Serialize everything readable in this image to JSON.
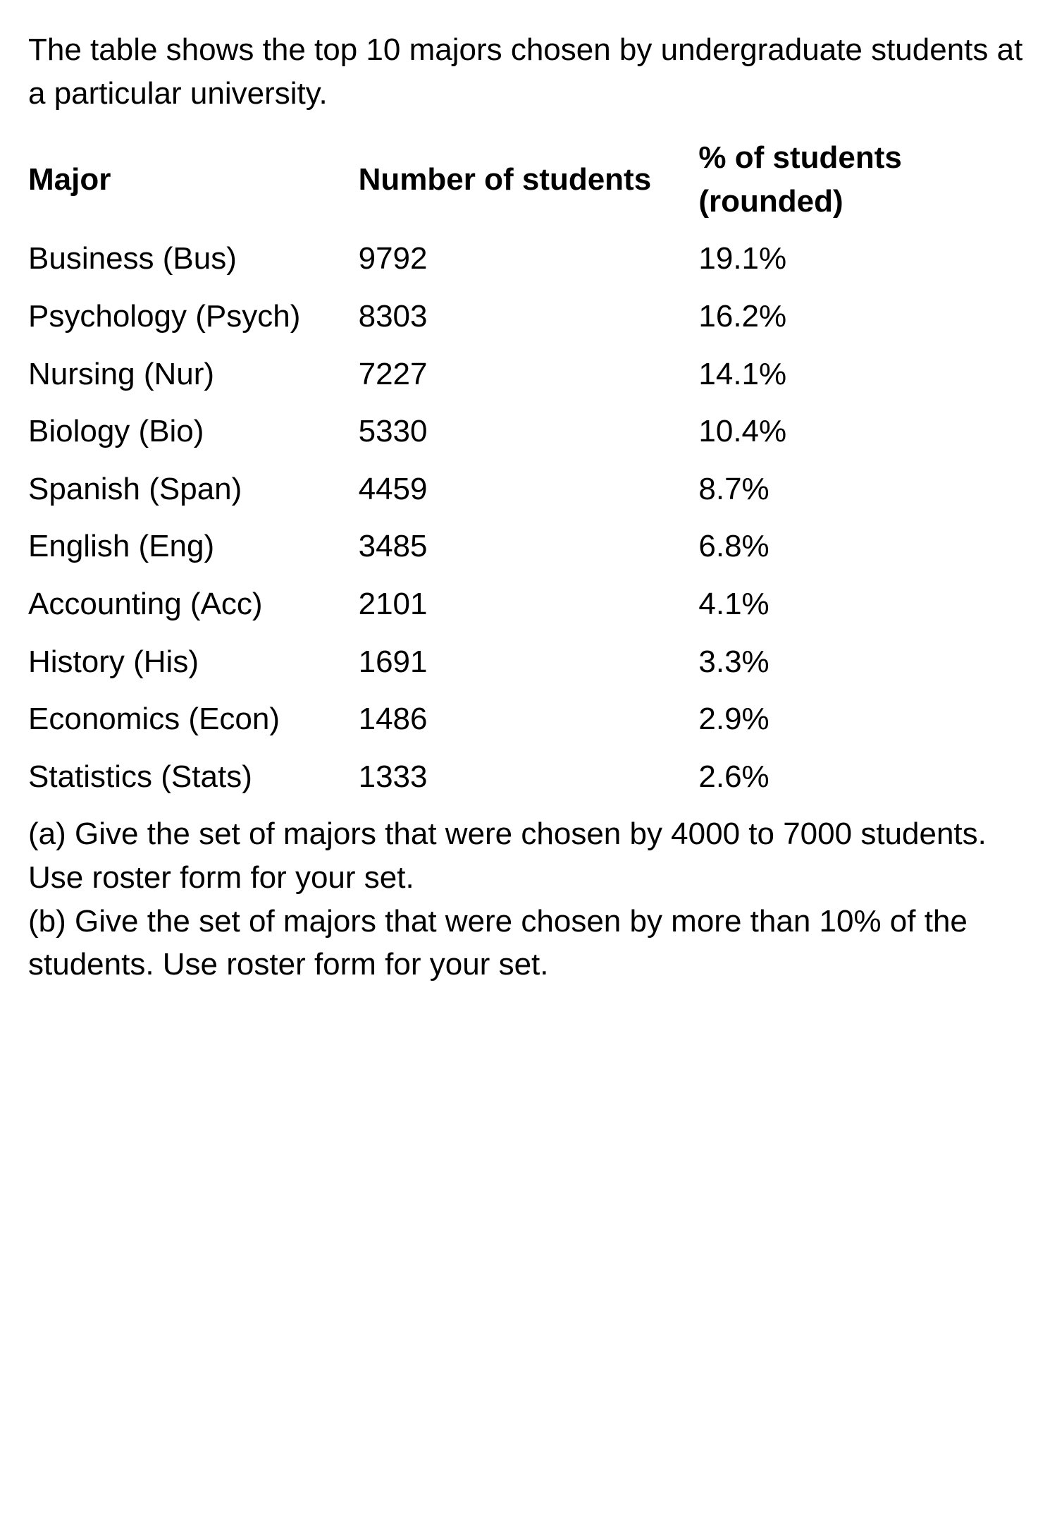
{
  "intro_text": "The table shows the top 10 majors chosen by undergraduate students at a particular university.",
  "table": {
    "columns": [
      "Major",
      "Number of students",
      "% of students (rounded)"
    ],
    "rows": [
      [
        "Business (Bus)",
        "9792",
        "19.1%"
      ],
      [
        "Psychology (Psych)",
        "8303",
        "16.2%"
      ],
      [
        "Nursing (Nur)",
        "7227",
        "14.1%"
      ],
      [
        "Biology (Bio)",
        "5330",
        "10.4%"
      ],
      [
        "Spanish (Span)",
        "4459",
        "8.7%"
      ],
      [
        "English (Eng)",
        "3485",
        "6.8%"
      ],
      [
        "Accounting (Acc)",
        "2101",
        "4.1%"
      ],
      [
        "History (His)",
        "1691",
        "3.3%"
      ],
      [
        "Economics (Econ)",
        "1486",
        "2.9%"
      ],
      [
        "Statistics (Stats)",
        "1333",
        "2.6%"
      ]
    ],
    "background_color": "#ffffff",
    "text_color": "#000000",
    "header_font_weight": 700,
    "body_font_weight": 400,
    "font_size_pt": 33,
    "column_widths_pct": [
      33,
      34,
      33
    ],
    "alignment": "left"
  },
  "question_a": "(a) Give the set of majors that were chosen by 4000 to 7000 students. Use roster form for your set.",
  "question_b": "(b) Give the set of majors that were chosen by more than 10% of the students. Use roster form for your set."
}
